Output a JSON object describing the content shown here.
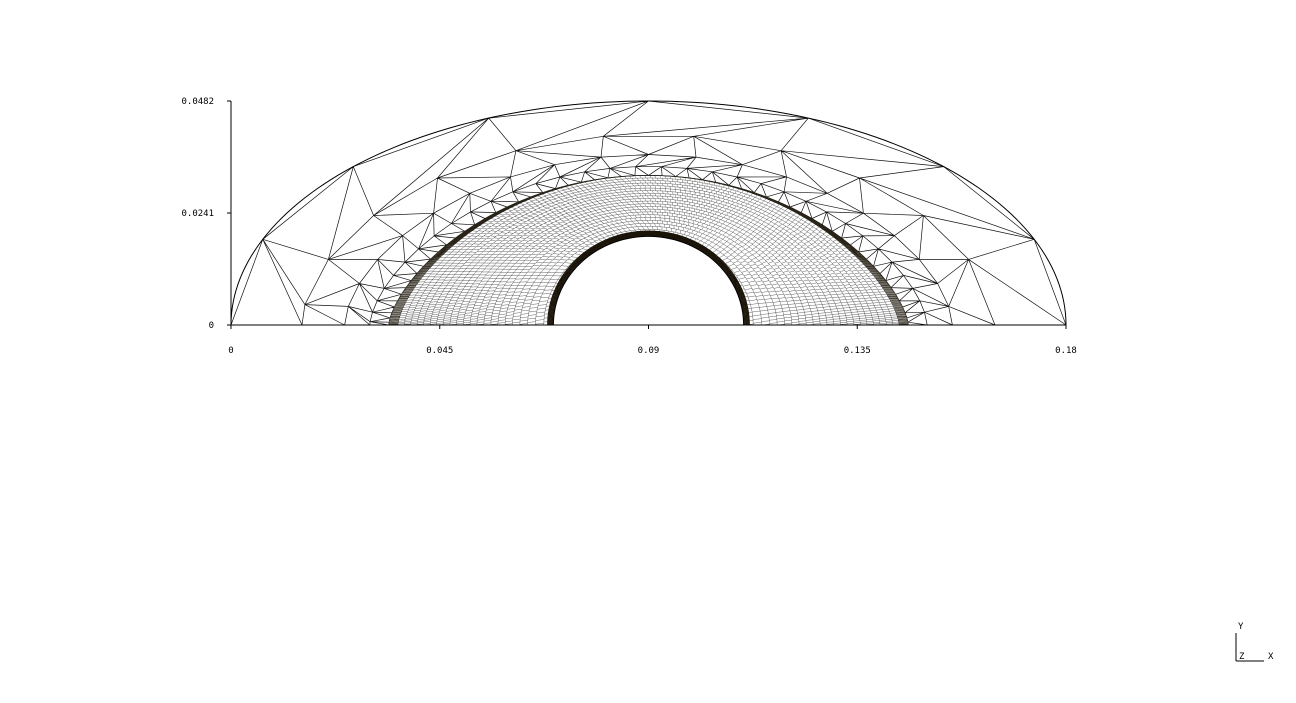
{
  "axes": {
    "x_ticks": [
      "0",
      "0.045",
      "0.09",
      "0.135",
      "0.18"
    ],
    "y_ticks": [
      "0",
      "0.0241",
      "0.0482"
    ],
    "xlim": [
      0,
      0.18
    ],
    "ylim": [
      0,
      0.0482
    ]
  },
  "triad": {
    "y": "Y",
    "z": "Z",
    "x": "X"
  },
  "mesh": {
    "outer_radius": 0.09,
    "outer_height": 0.0482,
    "cylinder_center_x": 0.09,
    "cylinder_radius": 0.0205,
    "shock_inner_half_width": 0.056,
    "shock_height": 0.0322
  },
  "colors": {
    "mesh_line": "#111111",
    "background": "#ffffff"
  }
}
